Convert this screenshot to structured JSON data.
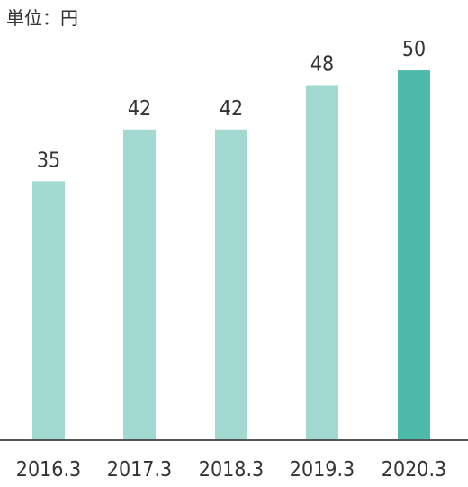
{
  "chart_data": {
    "type": "bar",
    "unit_label": "単位：円",
    "categories": [
      "2016.3",
      "2017.3",
      "2018.3",
      "2019.3",
      "2020.3"
    ],
    "values": [
      35,
      42,
      42,
      48,
      50
    ],
    "value_labels": [
      "35",
      "42",
      "42",
      "48",
      "50"
    ],
    "ylim": [
      0,
      59.5
    ],
    "grid": false,
    "legend": "none",
    "colors": {
      "bar": "#a1d8cf",
      "highlight_bar": "#4dbaaa",
      "axis": "#555555",
      "text": "#333333"
    },
    "highlight_index": 4
  }
}
